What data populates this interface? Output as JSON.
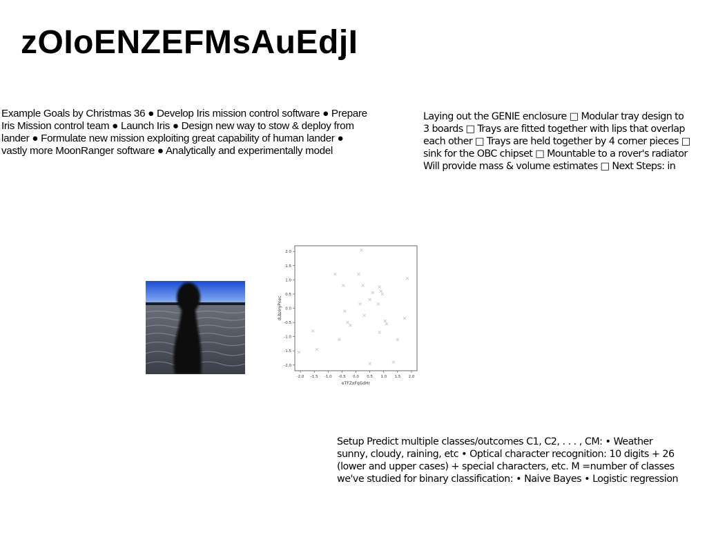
{
  "page_title": "zOIoENZEFMsAuEdjI",
  "left_text": {
    "lines": [
      "Example Goals by Christmas 36 ● Develop Iris mission control software ● Prepare",
      "Iris Mission control team ● Launch Iris ● Design new way to stow & deploy from",
      "lander ● Formulate new mission exploiting great capability of human lander ●",
      "vastly more MoonRanger software ● Analytically and experimentally model"
    ]
  },
  "right_text": {
    "lines": [
      "Laying out the GENIE enclosure □ Modular tray design to",
      "3 boards □ Trays are fitted together with lips that overlap",
      "each other □ Trays are held together by 4 corner pieces □",
      "sink for the OBC chipset □ Mountable to a rover's radiator",
      "Will provide mass & volume estimates □ Next Steps: in"
    ]
  },
  "bottom_text": {
    "lines": [
      "Setup Predict multiple classes/outcomes C1, C2, . . . , CM: • Weather",
      "sunny, cloudy, raining, etc • Optical character recognition: 10 digits + 26",
      "(lower and upper cases) + special characters, etc. M =number of classes",
      "we've studied for binary classification: • Naive Bayes • Logistic regression"
    ]
  },
  "chart_data": {
    "type": "scatter",
    "title": "",
    "xlabel": "eTFZxFqGdHr",
    "ylabel": "dLbziryPnec",
    "marker": "x",
    "color": "#c8c8c8",
    "xlim": [
      -2.2,
      2.2
    ],
    "ylim": [
      -2.2,
      2.2
    ],
    "xticks": [
      "-2.0",
      "-1.5",
      "-1.0",
      "-0.5",
      "0.0",
      "0.5",
      "1.0",
      "1.5",
      "2.0"
    ],
    "yticks": [
      "2.0",
      "1.5",
      "1.0",
      "0.5",
      "0.0",
      "-0.5",
      "-1.0",
      "-1.5",
      "-2.0"
    ],
    "x": [
      -2.05,
      -1.55,
      -1.4,
      -0.75,
      -0.6,
      -0.45,
      -0.4,
      -0.3,
      -0.2,
      0.1,
      0.15,
      0.2,
      0.25,
      0.3,
      0.5,
      0.5,
      0.6,
      0.8,
      0.85,
      0.9,
      0.95,
      1.05,
      1.1,
      1.35,
      1.5,
      1.75,
      1.85,
      0.85
    ],
    "y": [
      -1.55,
      -0.8,
      -1.45,
      1.2,
      -1.1,
      0.8,
      -0.1,
      -0.5,
      -0.6,
      1.2,
      0.15,
      2.05,
      0.8,
      -0.25,
      -1.95,
      0.3,
      0.55,
      0.15,
      0.75,
      0.6,
      0.5,
      -0.45,
      -0.55,
      -1.9,
      -1.1,
      -0.35,
      1.05,
      -0.85
    ]
  },
  "photo": {
    "sky_top": "#1a49d6",
    "sky_bottom": "#8fb7f0",
    "water": "#4a4e58",
    "silhouette": "#0c0c10"
  }
}
